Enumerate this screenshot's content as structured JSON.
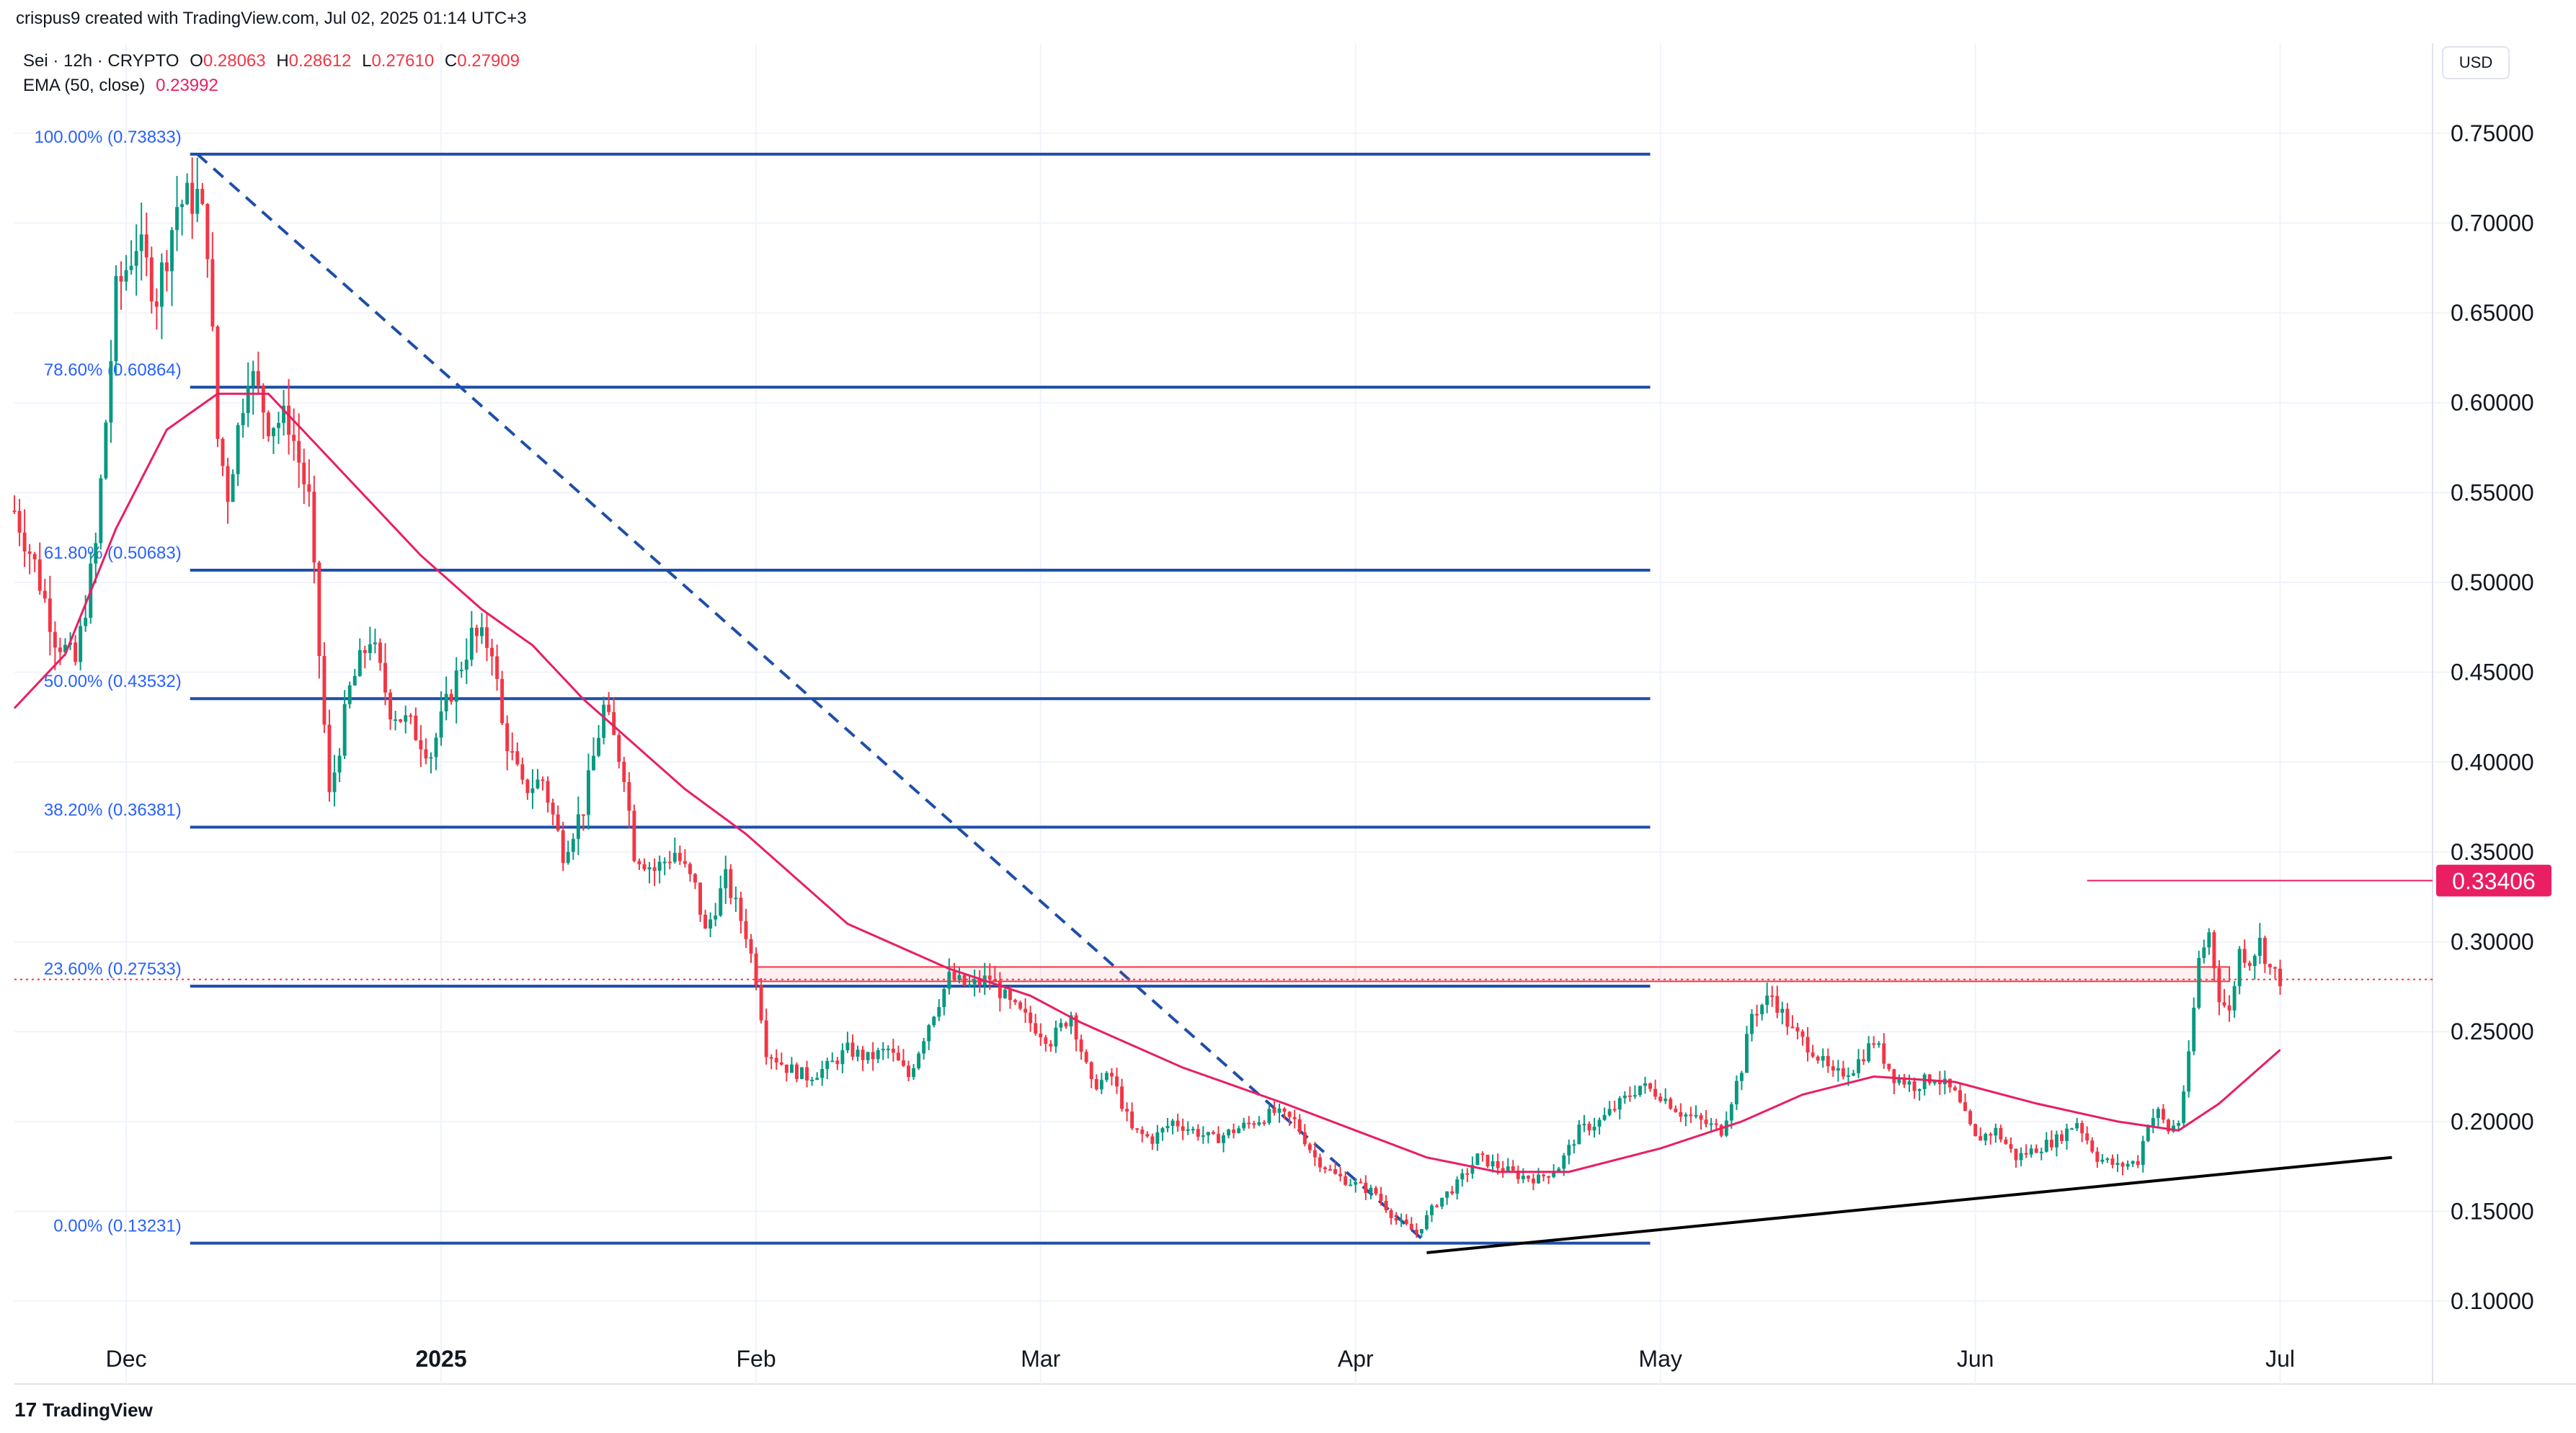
{
  "header": {
    "created": "crispus9 created with TradingView.com, Jul 02, 2025 01:14 UTC+3",
    "symbol": "Sei · 12h · CRYPTO",
    "o_label": "O",
    "o_value": "0.28063",
    "h_label": "H",
    "h_value": "0.28612",
    "l_label": "L",
    "l_value": "0.27610",
    "c_label": "C",
    "c_value": "0.27909",
    "ema_label": "EMA (50, close)",
    "ema_value": "0.23992"
  },
  "currency_button": "USD",
  "brand": {
    "logo": "17",
    "name": "TradingView"
  },
  "colors": {
    "up": "#089981",
    "down": "#f23645",
    "ema": "#e91e63",
    "fib": "#1e4fa8",
    "trend": "#000000",
    "grid": "#f0f3fa",
    "text": "#131722",
    "fib_label": "#2962ff",
    "price_tag": "#e91e63"
  },
  "chart_data": {
    "type": "candlestick",
    "title": "Sei · 12h · CRYPTO",
    "ylim": [
      0.08,
      0.78
    ],
    "y_ticks": [
      "0.75000",
      "0.70000",
      "0.65000",
      "0.60000",
      "0.55000",
      "0.50000",
      "0.45000",
      "0.40000",
      "0.35000",
      "0.30000",
      "0.25000",
      "0.20000",
      "0.15000",
      "0.10000"
    ],
    "x_range": [
      "2024-11-20",
      "2025-07-16"
    ],
    "x_ticks": [
      {
        "date": "2024-12-01",
        "label": "Dec"
      },
      {
        "date": "2025-01-01",
        "label": "2025"
      },
      {
        "date": "2025-02-01",
        "label": "Feb"
      },
      {
        "date": "2025-03-01",
        "label": "Mar"
      },
      {
        "date": "2025-04-01",
        "label": "Apr"
      },
      {
        "date": "2025-05-01",
        "label": "May"
      },
      {
        "date": "2025-06-01",
        "label": "Jun"
      },
      {
        "date": "2025-07-01",
        "label": "Jul"
      }
    ],
    "price_keypoints": [
      [
        "2024-11-20",
        0.54
      ],
      [
        "2024-11-22",
        0.51
      ],
      [
        "2024-11-24",
        0.47
      ],
      [
        "2024-11-26",
        0.455
      ],
      [
        "2024-11-28",
        0.52
      ],
      [
        "2024-11-30",
        0.66
      ],
      [
        "2024-12-02",
        0.69
      ],
      [
        "2024-12-04",
        0.66
      ],
      [
        "2024-12-06",
        0.71
      ],
      [
        "2024-12-08",
        0.715
      ],
      [
        "2024-12-09",
        0.69
      ],
      [
        "2024-12-10",
        0.58
      ],
      [
        "2024-12-11",
        0.55
      ],
      [
        "2024-12-13",
        0.62
      ],
      [
        "2024-12-15",
        0.59
      ],
      [
        "2024-12-17",
        0.59
      ],
      [
        "2024-12-19",
        0.545
      ],
      [
        "2024-12-20",
        0.46
      ],
      [
        "2024-12-21",
        0.38
      ],
      [
        "2024-12-23",
        0.44
      ],
      [
        "2024-12-25",
        0.47
      ],
      [
        "2024-12-27",
        0.43
      ],
      [
        "2024-12-29",
        0.42
      ],
      [
        "2024-12-31",
        0.405
      ],
      [
        "2025-01-02",
        0.44
      ],
      [
        "2025-01-04",
        0.47
      ],
      [
        "2025-01-06",
        0.465
      ],
      [
        "2025-01-07",
        0.42
      ],
      [
        "2025-01-09",
        0.385
      ],
      [
        "2025-01-11",
        0.39
      ],
      [
        "2025-01-13",
        0.35
      ],
      [
        "2025-01-15",
        0.375
      ],
      [
        "2025-01-17",
        0.43
      ],
      [
        "2025-01-19",
        0.395
      ],
      [
        "2025-01-20",
        0.35
      ],
      [
        "2025-01-22",
        0.34
      ],
      [
        "2025-01-24",
        0.35
      ],
      [
        "2025-01-26",
        0.33
      ],
      [
        "2025-01-27",
        0.305
      ],
      [
        "2025-01-29",
        0.335
      ],
      [
        "2025-01-31",
        0.305
      ],
      [
        "2025-02-01",
        0.28
      ],
      [
        "2025-02-02",
        0.24
      ],
      [
        "2025-02-04",
        0.23
      ],
      [
        "2025-02-06",
        0.225
      ],
      [
        "2025-02-08",
        0.23
      ],
      [
        "2025-02-10",
        0.24
      ],
      [
        "2025-02-12",
        0.235
      ],
      [
        "2025-02-14",
        0.24
      ],
      [
        "2025-02-16",
        0.225
      ],
      [
        "2025-02-18",
        0.255
      ],
      [
        "2025-02-20",
        0.28
      ],
      [
        "2025-02-22",
        0.275
      ],
      [
        "2025-02-24",
        0.28
      ],
      [
        "2025-02-26",
        0.265
      ],
      [
        "2025-02-28",
        0.255
      ],
      [
        "2025-03-02",
        0.245
      ],
      [
        "2025-03-04",
        0.26
      ],
      [
        "2025-03-06",
        0.22
      ],
      [
        "2025-03-08",
        0.225
      ],
      [
        "2025-03-10",
        0.195
      ],
      [
        "2025-03-12",
        0.19
      ],
      [
        "2025-03-14",
        0.2
      ],
      [
        "2025-03-16",
        0.195
      ],
      [
        "2025-03-18",
        0.19
      ],
      [
        "2025-03-20",
        0.195
      ],
      [
        "2025-03-22",
        0.2
      ],
      [
        "2025-03-24",
        0.205
      ],
      [
        "2025-03-26",
        0.2
      ],
      [
        "2025-03-28",
        0.18
      ],
      [
        "2025-03-30",
        0.17
      ],
      [
        "2025-04-01",
        0.165
      ],
      [
        "2025-04-03",
        0.16
      ],
      [
        "2025-04-05",
        0.145
      ],
      [
        "2025-04-07",
        0.138
      ],
      [
        "2025-04-09",
        0.155
      ],
      [
        "2025-04-11",
        0.165
      ],
      [
        "2025-04-13",
        0.18
      ],
      [
        "2025-04-15",
        0.175
      ],
      [
        "2025-04-17",
        0.17
      ],
      [
        "2025-04-19",
        0.168
      ],
      [
        "2025-04-21",
        0.175
      ],
      [
        "2025-04-23",
        0.195
      ],
      [
        "2025-04-25",
        0.2
      ],
      [
        "2025-04-27",
        0.21
      ],
      [
        "2025-04-29",
        0.22
      ],
      [
        "2025-05-01",
        0.215
      ],
      [
        "2025-05-03",
        0.205
      ],
      [
        "2025-05-05",
        0.2
      ],
      [
        "2025-05-07",
        0.195
      ],
      [
        "2025-05-09",
        0.23
      ],
      [
        "2025-05-10",
        0.26
      ],
      [
        "2025-05-12",
        0.27
      ],
      [
        "2025-05-14",
        0.25
      ],
      [
        "2025-05-16",
        0.24
      ],
      [
        "2025-05-18",
        0.225
      ],
      [
        "2025-05-20",
        0.23
      ],
      [
        "2025-05-22",
        0.245
      ],
      [
        "2025-05-24",
        0.225
      ],
      [
        "2025-05-26",
        0.22
      ],
      [
        "2025-05-28",
        0.225
      ],
      [
        "2025-05-30",
        0.215
      ],
      [
        "2025-06-01",
        0.19
      ],
      [
        "2025-06-03",
        0.195
      ],
      [
        "2025-06-05",
        0.18
      ],
      [
        "2025-06-07",
        0.185
      ],
      [
        "2025-06-09",
        0.19
      ],
      [
        "2025-06-11",
        0.2
      ],
      [
        "2025-06-13",
        0.18
      ],
      [
        "2025-06-15",
        0.175
      ],
      [
        "2025-06-17",
        0.178
      ],
      [
        "2025-06-18",
        0.2
      ],
      [
        "2025-06-19",
        0.205
      ],
      [
        "2025-06-20",
        0.195
      ],
      [
        "2025-06-21",
        0.2
      ],
      [
        "2025-06-22",
        0.235
      ],
      [
        "2025-06-23",
        0.29
      ],
      [
        "2025-06-24",
        0.305
      ],
      [
        "2025-06-25",
        0.27
      ],
      [
        "2025-06-26",
        0.26
      ],
      [
        "2025-06-27",
        0.295
      ],
      [
        "2025-06-28",
        0.29
      ],
      [
        "2025-06-29",
        0.3
      ],
      [
        "2025-06-30",
        0.285
      ],
      [
        "2025-07-01",
        0.279
      ]
    ],
    "ema50_keypoints": [
      [
        "2024-11-20",
        0.43
      ],
      [
        "2024-11-25",
        0.46
      ],
      [
        "2024-11-30",
        0.53
      ],
      [
        "2024-12-05",
        0.585
      ],
      [
        "2024-12-10",
        0.605
      ],
      [
        "2024-12-15",
        0.605
      ],
      [
        "2024-12-20",
        0.575
      ],
      [
        "2024-12-25",
        0.545
      ],
      [
        "2024-12-30",
        0.515
      ],
      [
        "2025-01-05",
        0.485
      ],
      [
        "2025-01-10",
        0.465
      ],
      [
        "2025-01-15",
        0.435
      ],
      [
        "2025-01-20",
        0.41
      ],
      [
        "2025-01-25",
        0.385
      ],
      [
        "2025-01-31",
        0.36
      ],
      [
        "2025-02-05",
        0.335
      ],
      [
        "2025-02-10",
        0.31
      ],
      [
        "2025-02-20",
        0.285
      ],
      [
        "2025-02-28",
        0.27
      ],
      [
        "2025-03-05",
        0.255
      ],
      [
        "2025-03-15",
        0.23
      ],
      [
        "2025-03-25",
        0.21
      ],
      [
        "2025-04-01",
        0.195
      ],
      [
        "2025-04-08",
        0.18
      ],
      [
        "2025-04-15",
        0.172
      ],
      [
        "2025-04-22",
        0.172
      ],
      [
        "2025-05-01",
        0.185
      ],
      [
        "2025-05-09",
        0.2
      ],
      [
        "2025-05-15",
        0.215
      ],
      [
        "2025-05-22",
        0.225
      ],
      [
        "2025-05-30",
        0.222
      ],
      [
        "2025-06-07",
        0.21
      ],
      [
        "2025-06-15",
        0.2
      ],
      [
        "2025-06-21",
        0.195
      ],
      [
        "2025-06-25",
        0.21
      ],
      [
        "2025-07-01",
        0.2399
      ]
    ],
    "fib_retracement": {
      "date_start": "2024-12-08",
      "date_end": "2025-04-30",
      "levels": [
        {
          "label": "100.00% (0.73833)",
          "value": 0.73833
        },
        {
          "label": "78.60% (0.60864)",
          "value": 0.60864
        },
        {
          "label": "61.80% (0.50683)",
          "value": 0.50683
        },
        {
          "label": "50.00% (0.43532)",
          "value": 0.43532
        },
        {
          "label": "38.20% (0.36381)",
          "value": 0.36381
        },
        {
          "label": "23.60% (0.27533)",
          "value": 0.27533
        },
        {
          "label": "0.00% (0.13231)",
          "value": 0.13231
        }
      ]
    },
    "fib_trend_line": {
      "from": [
        "2024-12-08",
        0.73833
      ],
      "to": [
        "2025-04-08",
        0.13231
      ]
    },
    "support_trendline": {
      "from": [
        "2025-04-08",
        0.127
      ],
      "to": [
        "2025-07-12",
        0.18
      ]
    },
    "resistance_zone": {
      "from": "2025-02-01",
      "to": "2025-06-26",
      "top": 0.286,
      "bottom": 0.278
    },
    "high_line": {
      "from": "2025-06-12",
      "value": 0.33406
    },
    "high_label": "0.33406",
    "last_price": 0.27909
  }
}
